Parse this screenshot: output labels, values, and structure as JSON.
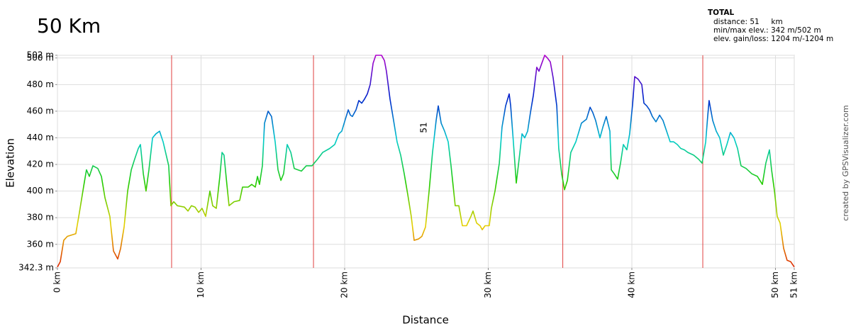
{
  "chart_data": {
    "type": "line",
    "title": "50 Km",
    "summary": {
      "heading": "TOTAL",
      "lines": [
        "distance: 51     km",
        "min/max elev.: 342 m/502 m",
        "elev. gain/loss: 1204 m/-1204 m"
      ]
    },
    "x_label": "Distance",
    "y_label": "Elevation",
    "credit": "created by GPSVisualizer.com",
    "annotations": [
      "51"
    ],
    "xlim": [
      0,
      51.31
    ],
    "ylim": [
      342.3,
      502
    ],
    "xticks": [
      {
        "value": 0,
        "label": "0 km"
      },
      {
        "value": 10,
        "label": "10 km"
      },
      {
        "value": 20,
        "label": "20 km"
      },
      {
        "value": 30,
        "label": "30 km"
      },
      {
        "value": 40,
        "label": "40 km"
      },
      {
        "value": 50,
        "label": "50 km"
      },
      {
        "value": 51.31,
        "label": "51 km"
      }
    ],
    "yticks": [
      {
        "value": 342.3,
        "label": "342.3 m"
      },
      {
        "value": 360,
        "label": "360 m"
      },
      {
        "value": 380,
        "label": "380 m"
      },
      {
        "value": 400,
        "label": "400 m"
      },
      {
        "value": 420,
        "label": "420 m"
      },
      {
        "value": 440,
        "label": "440 m"
      },
      {
        "value": 460,
        "label": "460 m"
      },
      {
        "value": 480,
        "label": "480 m"
      },
      {
        "value": 500,
        "label": "500 m"
      },
      {
        "value": 502,
        "label": "502 m"
      }
    ],
    "grid": true,
    "vlines": [
      7.95,
      17.83,
      35.19,
      44.94
    ],
    "vline_color": "#e04040",
    "colors": [
      "#dd2200",
      "#e6d000",
      "#22cc00",
      "#00cccc",
      "#0022cc",
      "#b000cc"
    ],
    "x": [
      0,
      0.2,
      0.44,
      0.69,
      1.28,
      1.53,
      1.83,
      2.02,
      2.22,
      2.47,
      2.81,
      3.06,
      3.31,
      3.65,
      3.9,
      4.2,
      4.4,
      4.64,
      4.89,
      5.14,
      5.38,
      5.63,
      5.78,
      5.98,
      6.17,
      6.37,
      6.62,
      6.86,
      7.11,
      7.36,
      7.75,
      7.9,
      8.1,
      8.35,
      8.84,
      9.09,
      9.33,
      9.58,
      9.83,
      10.07,
      10.32,
      10.62,
      10.81,
      11.06,
      11.31,
      11.46,
      11.6,
      11.8,
      11.95,
      12.3,
      12.69,
      12.89,
      13.28,
      13.53,
      13.78,
      13.93,
      14.07,
      14.27,
      14.42,
      14.67,
      14.91,
      15.16,
      15.36,
      15.56,
      15.75,
      16.0,
      16.25,
      16.49,
      16.74,
      16.99,
      17.33,
      17.73,
      18.12,
      18.47,
      18.96,
      19.31,
      19.6,
      19.8,
      20.05,
      20.25,
      20.4,
      20.54,
      20.79,
      20.99,
      21.19,
      21.38,
      21.58,
      21.78,
      21.98,
      22.17,
      22.57,
      22.77,
      22.91,
      23.16,
      23.41,
      23.65,
      23.9,
      24.15,
      24.4,
      24.64,
      24.84,
      25.14,
      25.38,
      25.63,
      25.88,
      26.12,
      26.37,
      26.52,
      26.72,
      26.96,
      27.21,
      27.41,
      27.7,
      27.95,
      28.2,
      28.49,
      28.79,
      28.94,
      29.19,
      29.43,
      29.58,
      29.78,
      30.07,
      30.22,
      30.47,
      30.77,
      30.96,
      31.21,
      31.46,
      31.56,
      31.75,
      31.95,
      32.15,
      32.35,
      32.54,
      32.74,
      32.94,
      33.14,
      33.38,
      33.53,
      33.73,
      33.93,
      34.12,
      34.32,
      34.52,
      34.77,
      34.91,
      35.11,
      35.31,
      35.51,
      35.75,
      36.1,
      36.49,
      36.84,
      37.09,
      37.28,
      37.48,
      37.78,
      37.98,
      38.22,
      38.47,
      38.57,
      38.77,
      39.01,
      39.21,
      39.41,
      39.65,
      39.85,
      40.05,
      40.2,
      40.44,
      40.69,
      40.84,
      41.04,
      41.23,
      41.43,
      41.68,
      41.93,
      42.17,
      42.42,
      42.67,
      42.91,
      43.16,
      43.41,
      43.65,
      43.9,
      44.3,
      44.64,
      44.89,
      45.14,
      45.28,
      45.38,
      45.63,
      45.88,
      46.12,
      46.37,
      46.62,
      46.86,
      47.11,
      47.36,
      47.6,
      47.95,
      48.35,
      48.74,
      49.09,
      49.33,
      49.58,
      49.73,
      49.93,
      50.12,
      50.32,
      50.57,
      50.81,
      51.06,
      51.31
    ],
    "values": [
      343,
      347,
      363,
      366,
      368,
      384,
      404,
      416,
      411,
      419,
      417,
      411,
      395,
      381,
      355,
      349,
      357,
      373,
      400,
      416,
      424,
      432,
      435,
      413,
      400,
      416,
      440,
      443,
      445,
      437,
      419,
      389,
      392,
      389,
      388,
      385,
      389,
      388,
      384,
      387,
      381,
      400,
      389,
      387,
      411,
      429,
      427,
      405,
      389,
      392,
      393,
      403,
      403,
      405,
      403,
      411,
      405,
      419,
      451,
      460,
      456,
      437,
      416,
      408,
      413,
      435,
      429,
      417,
      416,
      415,
      419,
      419,
      424,
      429,
      432,
      435,
      443,
      445,
      454,
      461,
      457,
      456,
      461,
      468,
      466,
      469,
      473,
      480,
      496,
      502,
      502,
      498,
      490,
      469,
      453,
      437,
      427,
      413,
      397,
      381,
      363,
      364,
      366,
      373,
      400,
      429,
      453,
      464,
      451,
      445,
      437,
      419,
      389,
      389,
      374,
      374,
      381,
      385,
      376,
      374,
      371,
      374,
      374,
      387,
      400,
      421,
      448,
      464,
      473,
      464,
      437,
      406,
      424,
      443,
      440,
      445,
      459,
      472,
      493,
      490,
      496,
      502,
      500,
      497,
      485,
      464,
      432,
      413,
      401,
      408,
      429,
      437,
      451,
      454,
      463,
      459,
      453,
      440,
      448,
      456,
      445,
      416,
      413,
      409,
      421,
      435,
      431,
      443,
      465,
      486,
      484,
      480,
      466,
      464,
      461,
      456,
      452,
      457,
      453,
      445,
      437,
      437,
      435,
      432,
      431,
      429,
      427,
      424,
      421,
      437,
      456,
      468,
      453,
      445,
      440,
      427,
      435,
      444,
      440,
      432,
      419,
      417,
      413,
      411,
      405,
      421,
      431,
      416,
      400,
      381,
      376,
      357,
      348,
      347,
      343
    ]
  }
}
